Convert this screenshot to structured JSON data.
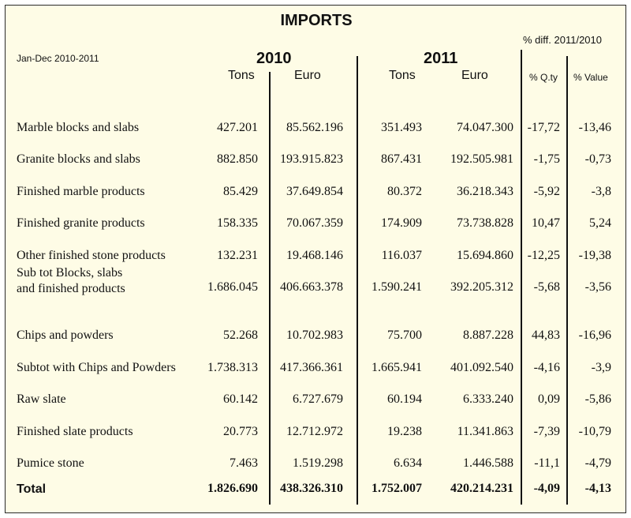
{
  "title": "IMPORTS",
  "period": "Jan-Dec 2010-2011",
  "pct_diff_header": "% diff. 2011/2010",
  "years": [
    "2010",
    "2011"
  ],
  "col_headers": {
    "tons_2010": "Tons",
    "euro_2010": "Euro",
    "tons_2011": "Tons",
    "euro_2011": "Euro",
    "pct_qty": "% Q.ty",
    "pct_value": "% Value"
  },
  "rows": [
    {
      "label": [
        "Marble blocks and slabs"
      ],
      "tons_2010": "427.201",
      "euro_2010": "85.562.196",
      "tons_2011": "351.493",
      "euro_2011": "74.047.300",
      "pct_qty": "-17,72",
      "pct_value": "-13,46"
    },
    {
      "label": [
        "Granite blocks and slabs"
      ],
      "tons_2010": "882.850",
      "euro_2010": "193.915.823",
      "tons_2011": "867.431",
      "euro_2011": "192.505.981",
      "pct_qty": "-1,75",
      "pct_value": "-0,73"
    },
    {
      "label": [
        "Finished marble products"
      ],
      "tons_2010": "85.429",
      "euro_2010": "37.649.854",
      "tons_2011": "80.372",
      "euro_2011": "36.218.343",
      "pct_qty": "-5,92",
      "pct_value": "-3,8"
    },
    {
      "label": [
        "Finished granite products"
      ],
      "tons_2010": "158.335",
      "euro_2010": "70.067.359",
      "tons_2011": "174.909",
      "euro_2011": "73.738.828",
      "pct_qty": "10,47",
      "pct_value": "5,24"
    },
    {
      "label": [
        "Other finished stone products"
      ],
      "tons_2010": "132.231",
      "euro_2010": "19.468.146",
      "tons_2011": "116.037",
      "euro_2011": "15.694.860",
      "pct_qty": "-12,25",
      "pct_value": "-19,38"
    },
    {
      "label": [
        "Sub tot Blocks, slabs",
        "and finished products"
      ],
      "tons_2010": "1.686.045",
      "euro_2010": "406.663.378",
      "tons_2011": "1.590.241",
      "euro_2011": "392.205.312",
      "pct_qty": "-5,68",
      "pct_value": "-3,56"
    },
    {
      "label": [
        "Chips and  powders"
      ],
      "tons_2010": "52.268",
      "euro_2010": "10.702.983",
      "tons_2011": "75.700",
      "euro_2011": "8.887.228",
      "pct_qty": "44,83",
      "pct_value": "-16,96"
    },
    {
      "label": [
        "Subtot with Chips and Powders"
      ],
      "tons_2010": "1.738.313",
      "euro_2010": "417.366.361",
      "tons_2011": "1.665.941",
      "euro_2011": "401.092.540",
      "pct_qty": "-4,16",
      "pct_value": "-3,9"
    },
    {
      "label": [
        "Raw slate"
      ],
      "tons_2010": "60.142",
      "euro_2010": "6.727.679",
      "tons_2011": "60.194",
      "euro_2011": "6.333.240",
      "pct_qty": "0,09",
      "pct_value": "-5,86"
    },
    {
      "label": [
        "Finished slate products"
      ],
      "tons_2010": "20.773",
      "euro_2010": "12.712.972",
      "tons_2011": "19.238",
      "euro_2011": "11.341.863",
      "pct_qty": "-7,39",
      "pct_value": "-10,79"
    },
    {
      "label": [
        "Pumice stone"
      ],
      "tons_2010": "7.463",
      "euro_2010": "1.519.298",
      "tons_2011": "6.634",
      "euro_2011": "1.446.588",
      "pct_qty": "-11,1",
      "pct_value": "-4,79"
    }
  ],
  "total": {
    "label": "Total",
    "tons_2010": "1.826.690",
    "euro_2010": "438.326.310",
    "tons_2011": "1.752.007",
    "euro_2011": "420.214.231",
    "pct_qty": "-4,09",
    "pct_value": "-4,13"
  }
}
